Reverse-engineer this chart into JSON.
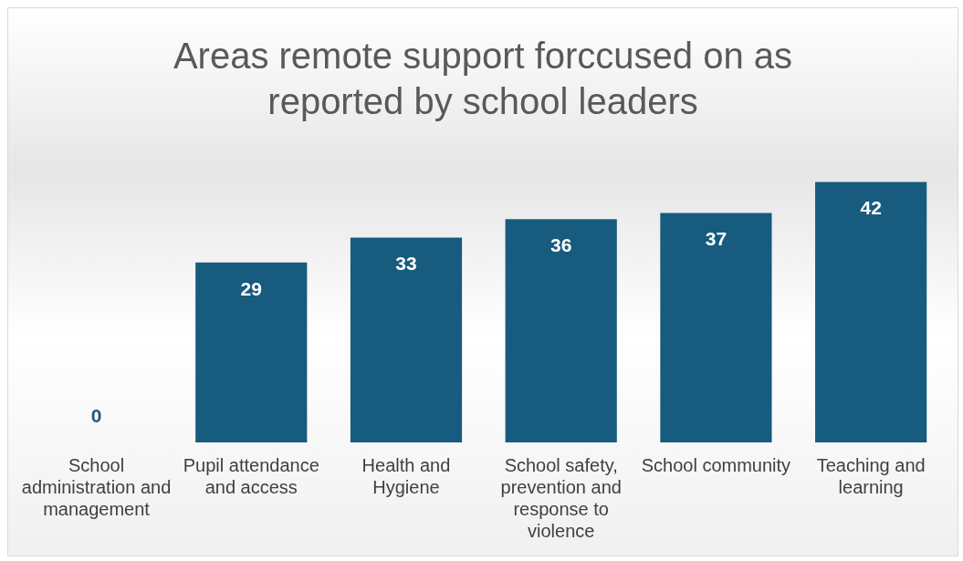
{
  "chart_data": {
    "type": "bar",
    "title": "Areas remote support forccused on as reported by school leaders",
    "categories": [
      "School administration and management",
      "Pupil attendance and access",
      "Health and Hygiene",
      "School safety, prevention and response to violence",
      "School community",
      "Teaching and learning"
    ],
    "values": [
      0,
      29,
      33,
      36,
      37,
      42
    ],
    "color": "#175b7e",
    "data_labels": true,
    "grid": false,
    "legend": false
  }
}
